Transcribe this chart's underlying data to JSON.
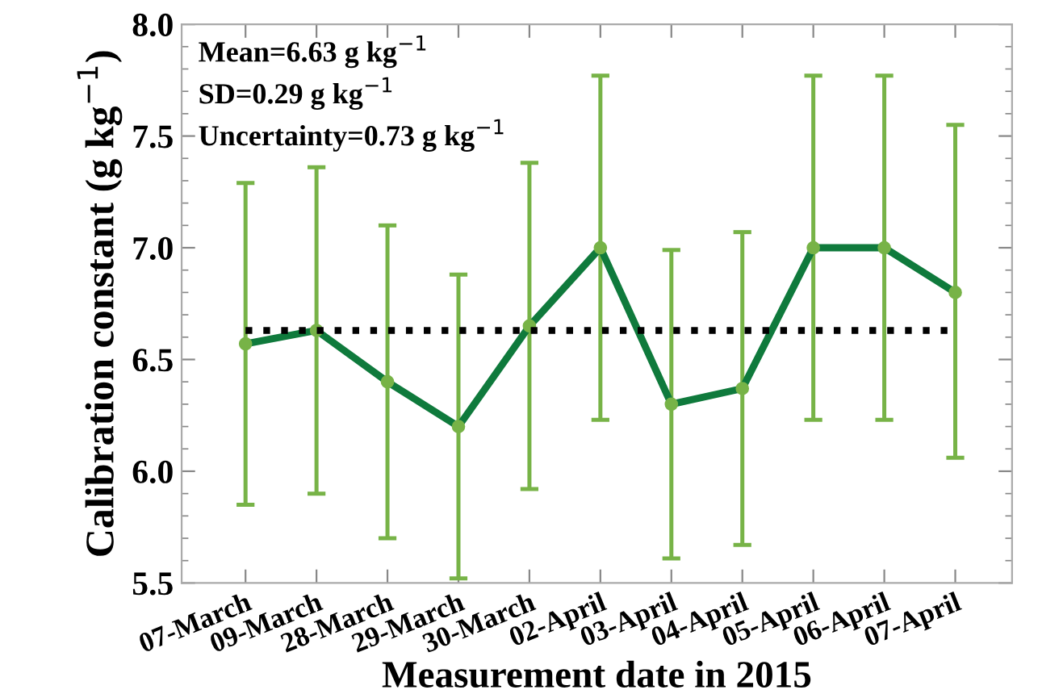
{
  "chart_data": {
    "type": "line",
    "xlabel": "Measurement date in 2015",
    "ylabel": "Calibration constant (g kg$^{−1}$)",
    "categories": [
      "07-March",
      "09-March",
      "28-March",
      "29-March",
      "30-March",
      "02-April",
      "03-April",
      "04-April",
      "05-April",
      "06-April",
      "07-April"
    ],
    "series": [
      {
        "color": "#0f7a3c",
        "values": [
          6.57,
          6.63,
          6.4,
          6.2,
          6.65,
          7.0,
          6.3,
          6.37,
          7.0,
          7.0,
          6.8
        ],
        "errors": [
          [
            5.85,
            7.29
          ],
          [
            5.9,
            7.36
          ],
          [
            5.7,
            7.1
          ],
          [
            5.52,
            6.88
          ],
          [
            5.92,
            7.38
          ],
          [
            6.23,
            7.77
          ],
          [
            5.61,
            6.99
          ],
          [
            5.67,
            7.07
          ],
          [
            6.23,
            7.77
          ],
          [
            6.23,
            7.77
          ],
          [
            6.06,
            7.55
          ]
        ]
      }
    ],
    "ref_lines": [
      {
        "axis": "y",
        "value": 6.63,
        "color": "#000000",
        "line_style": "dotted"
      }
    ],
    "annotations": [
      "Mean=6.63 g kg$^{−1}$",
      "SD=0.29 g kg$^{−1}$",
      "Uncertainty=0.73 g kg$^{−1}$"
    ],
    "ylim": [
      5.5,
      8.0
    ],
    "yticks": [
      {
        "value": 5.5,
        "label": "5.5"
      },
      {
        "value": 6.0,
        "label": "6.0"
      },
      {
        "value": 6.5,
        "label": "6.5"
      },
      {
        "value": 7.0,
        "label": "7.0"
      },
      {
        "value": 7.5,
        "label": "7.5"
      },
      {
        "value": 8.0,
        "label": "8.0"
      }
    ],
    "marker": "circle",
    "line_style": "solid",
    "grid": false,
    "legend": false
  }
}
